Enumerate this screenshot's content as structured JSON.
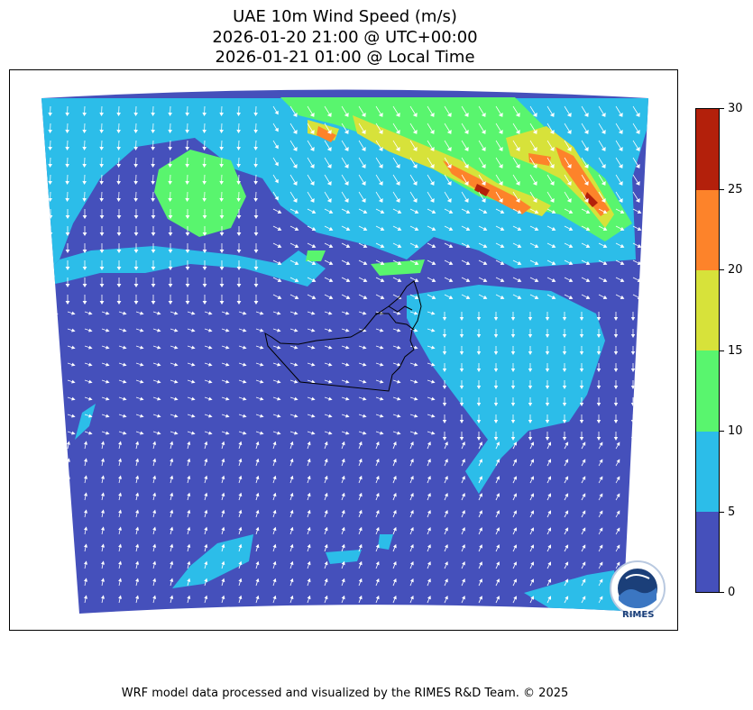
{
  "title": {
    "line1": "UAE 10m Wind Speed (m/s)",
    "line2": "2026-01-20 21:00 @ UTC+00:00",
    "line3": "2026-01-21 01:00 @ Local Time"
  },
  "colorbar": {
    "ticks": [
      "0",
      "5",
      "10",
      "15",
      "20",
      "25",
      "30"
    ],
    "levels": [
      {
        "from": 0,
        "to": 5,
        "color": "#4550bb"
      },
      {
        "from": 5,
        "to": 10,
        "color": "#2cbde9"
      },
      {
        "from": 10,
        "to": 15,
        "color": "#59f56e"
      },
      {
        "from": 15,
        "to": 20,
        "color": "#d7e23a"
      },
      {
        "from": 20,
        "to": 25,
        "color": "#fd832a"
      },
      {
        "from": 25,
        "to": 30,
        "color": "#b3200b"
      }
    ]
  },
  "map": {
    "region": "UAE",
    "variable": "10m wind speed",
    "units": "m/s",
    "background_color": "#4550bb",
    "arrow_color": "#ffffff",
    "border_color": "#000000"
  },
  "logo": {
    "text": "RIMES",
    "icon": "rimes-logo-icon"
  },
  "footer": {
    "text": "WRF model data processed and visualized by the RIMES R&D Team. © 2025"
  }
}
